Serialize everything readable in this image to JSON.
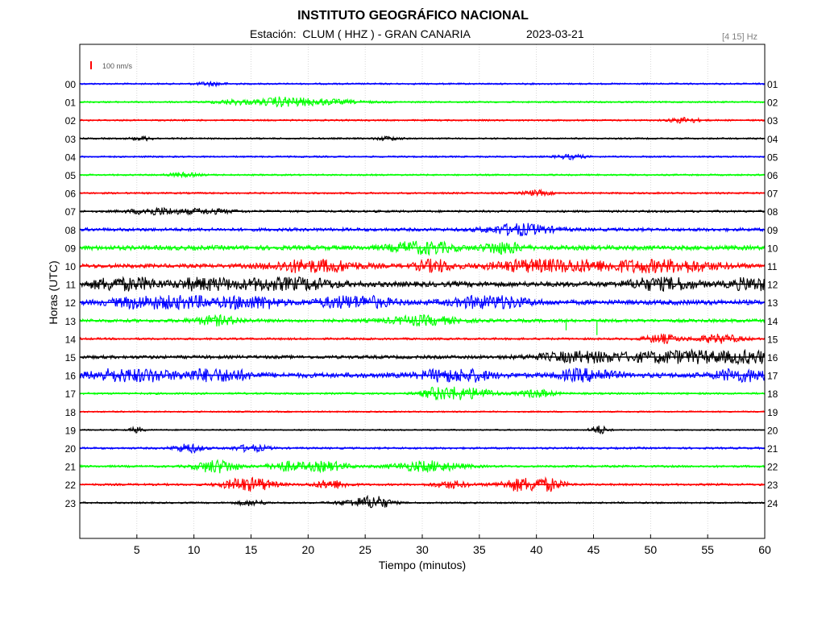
{
  "chart_data": {
    "type": "line",
    "title": "INSTITUTO GEOGRÁFICO NACIONAL",
    "subtitle": "Estación:  CLUM ( HHZ ) - GRAN CANARIA",
    "date": "2023-03-21",
    "frequency_band": "[4 15] Hz",
    "scale_label": "100 nm/s",
    "xlabel": "Tiempo (minutos)",
    "ylabel": "Horas (UTC)",
    "xlim": [
      0,
      60
    ],
    "xticks": [
      5,
      10,
      15,
      20,
      25,
      30,
      35,
      40,
      45,
      50,
      55,
      60
    ],
    "grid": true,
    "colors": [
      "#0000ff",
      "#00ff00",
      "#ff0000",
      "#000000"
    ],
    "rows": [
      {
        "left": "00",
        "right": "01",
        "color": "#0000ff",
        "noise": 1.0,
        "events": [
          [
            11.5,
            2.5,
            1.0
          ]
        ]
      },
      {
        "left": "01",
        "right": "02",
        "color": "#00ff00",
        "noise": 1.0,
        "events": [
          [
            13.5,
            3.5,
            1.2
          ],
          [
            20.0,
            8.0,
            1.8
          ],
          [
            17.5,
            3.0,
            1.5
          ]
        ]
      },
      {
        "left": "02",
        "right": "03",
        "color": "#ff0000",
        "noise": 1.0,
        "events": [
          [
            53.0,
            2.5,
            1.5
          ]
        ]
      },
      {
        "left": "03",
        "right": "04",
        "color": "#000000",
        "noise": 1.0,
        "events": [
          [
            5.5,
            2.0,
            1.0
          ],
          [
            27.0,
            2.0,
            1.0
          ]
        ]
      },
      {
        "left": "04",
        "right": "05",
        "color": "#0000ff",
        "noise": 1.0,
        "events": [
          [
            43.0,
            2.5,
            1.2
          ]
        ]
      },
      {
        "left": "05",
        "right": "06",
        "color": "#00ff00",
        "noise": 1.0,
        "events": [
          [
            9.0,
            3.0,
            1.0
          ]
        ]
      },
      {
        "left": "06",
        "right": "07",
        "color": "#ff0000",
        "noise": 1.1,
        "events": [
          [
            40.0,
            2.5,
            1.2
          ]
        ]
      },
      {
        "left": "07",
        "right": "08",
        "color": "#000000",
        "noise": 1.3,
        "events": [
          [
            6.5,
            4.0,
            1.5
          ],
          [
            11.0,
            5.0,
            1.0
          ]
        ]
      },
      {
        "left": "08",
        "right": "09",
        "color": "#0000ff",
        "noise": 2.0,
        "events": [
          [
            38.5,
            5.5,
            1.5
          ]
        ]
      },
      {
        "left": "09",
        "right": "10",
        "color": "#00ff00",
        "noise": 2.8,
        "events": [
          [
            30.0,
            5.0,
            1.3
          ],
          [
            37.0,
            3.0,
            1.3
          ]
        ]
      },
      {
        "left": "10",
        "right": "11",
        "color": "#ff0000",
        "noise": 2.5,
        "events": [
          [
            20.5,
            7.0,
            1.6
          ],
          [
            31.0,
            3.0,
            1.4
          ],
          [
            41.0,
            9.0,
            1.6
          ],
          [
            51.0,
            9.0,
            1.6
          ]
        ]
      },
      {
        "left": "11",
        "right": "12",
        "color": "#000000",
        "noise": 3.2,
        "events": [
          [
            4.0,
            5.0,
            1.4
          ],
          [
            11.0,
            4.0,
            1.3
          ],
          [
            18.0,
            7.0,
            1.4
          ],
          [
            51.0,
            5.0,
            1.3
          ],
          [
            59.5,
            4.0,
            1.5
          ]
        ]
      },
      {
        "left": "12",
        "right": "13",
        "color": "#0000ff",
        "noise": 3.0,
        "events": [
          [
            7.5,
            7.0,
            1.8
          ],
          [
            15.0,
            4.0,
            1.6
          ],
          [
            24.0,
            6.0,
            1.2
          ],
          [
            36.0,
            6.0,
            1.2
          ]
        ]
      },
      {
        "left": "13",
        "right": "14",
        "color": "#00ff00",
        "noise": 2.0,
        "events": [
          [
            12.0,
            4.0,
            1.2
          ],
          [
            30.0,
            6.0,
            1.2
          ]
        ],
        "spikes": [
          [
            42.6,
            12
          ],
          [
            45.3,
            18
          ]
        ]
      },
      {
        "left": "14",
        "right": "15",
        "color": "#ff0000",
        "noise": 1.3,
        "events": [
          [
            51.0,
            3.0,
            1.8
          ],
          [
            56.0,
            4.0,
            1.8
          ]
        ]
      },
      {
        "left": "15",
        "right": "16",
        "color": "#000000",
        "noise": 2.0,
        "events": [
          [
            44.0,
            8.0,
            1.4
          ],
          [
            53.0,
            9.0,
            1.8
          ],
          [
            59.0,
            4.0,
            1.6
          ]
        ]
      },
      {
        "left": "16",
        "right": "17",
        "color": "#0000ff",
        "noise": 3.0,
        "events": [
          [
            4.5,
            6.0,
            1.5
          ],
          [
            12.0,
            5.0,
            1.4
          ],
          [
            33.0,
            5.0,
            1.6
          ],
          [
            44.5,
            4.0,
            1.6
          ],
          [
            58.0,
            4.0,
            1.4
          ]
        ]
      },
      {
        "left": "17",
        "right": "18",
        "color": "#00ff00",
        "noise": 1.2,
        "events": [
          [
            32.0,
            3.5,
            4.0
          ],
          [
            35.0,
            3.0,
            2.0
          ],
          [
            40.0,
            3.0,
            1.8
          ]
        ]
      },
      {
        "left": "18",
        "right": "19",
        "color": "#ff0000",
        "noise": 0.9,
        "events": []
      },
      {
        "left": "19",
        "right": "20",
        "color": "#000000",
        "noise": 0.8,
        "events": [
          [
            5.0,
            1.2,
            2.0
          ],
          [
            45.5,
            1.5,
            3.0
          ]
        ]
      },
      {
        "left": "20",
        "right": "21",
        "color": "#0000ff",
        "noise": 1.2,
        "events": [
          [
            9.5,
            2.5,
            2.0
          ],
          [
            15.0,
            3.0,
            1.5
          ]
        ]
      },
      {
        "left": "21",
        "right": "22",
        "color": "#00ff00",
        "noise": 1.3,
        "events": [
          [
            12.0,
            3.5,
            3.0
          ],
          [
            18.0,
            3.0,
            2.0
          ],
          [
            21.5,
            4.0,
            2.0
          ],
          [
            30.5,
            6.0,
            2.2
          ]
        ]
      },
      {
        "left": "22",
        "right": "23",
        "color": "#ff0000",
        "noise": 1.3,
        "events": [
          [
            14.8,
            4.0,
            3.5
          ],
          [
            22.0,
            3.0,
            1.8
          ],
          [
            32.5,
            3.0,
            1.5
          ],
          [
            38.5,
            4.0,
            1.8
          ],
          [
            40.2,
            3.5,
            4.0
          ]
        ]
      },
      {
        "left": "23",
        "right": "24",
        "color": "#000000",
        "noise": 1.0,
        "events": [
          [
            15.0,
            2.5,
            1.5
          ],
          [
            24.5,
            4.0,
            1.8
          ],
          [
            26.0,
            2.5,
            2.8
          ]
        ]
      }
    ]
  }
}
